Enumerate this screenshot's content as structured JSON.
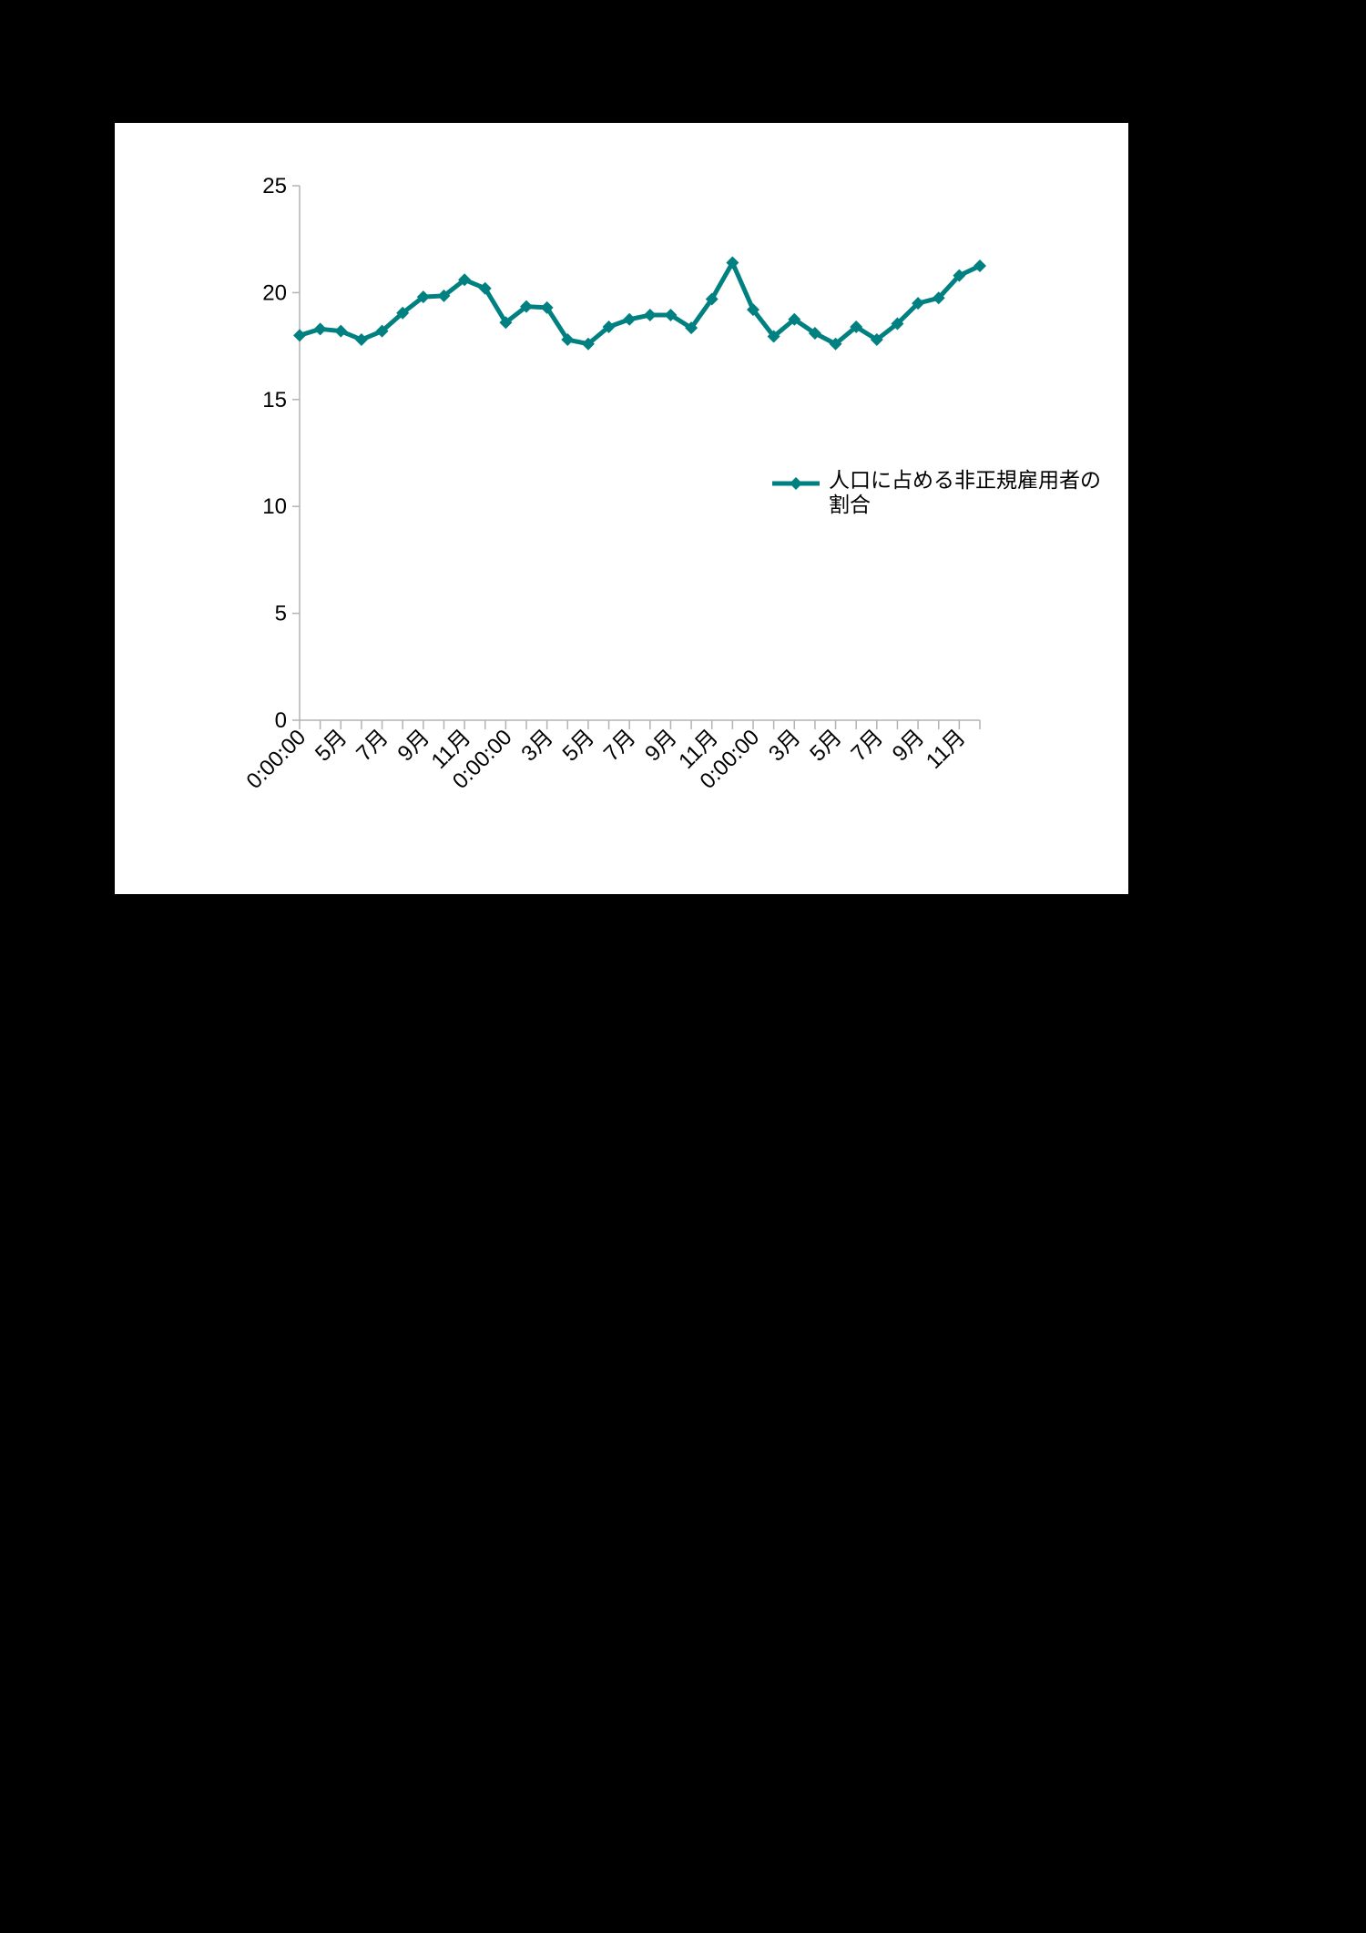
{
  "chart_data": {
    "type": "line",
    "categories": [
      "0:00:00",
      null,
      "5月",
      null,
      "7月",
      null,
      "9月",
      null,
      "11月",
      null,
      "0:00:00",
      null,
      "3月",
      null,
      "5月",
      null,
      "7月",
      null,
      "9月",
      null,
      "11月",
      null,
      "0:00:00",
      null,
      "3月",
      null,
      "5月",
      null,
      "7月",
      null,
      "9月",
      null,
      "11月",
      null
    ],
    "series": [
      {
        "name": "人口に占める非正規雇用者の割合",
        "color": "#008080",
        "values": [
          18.0,
          18.3,
          18.2,
          17.8,
          18.2,
          19.05,
          19.8,
          19.85,
          20.6,
          20.2,
          18.6,
          19.35,
          19.3,
          17.8,
          17.6,
          18.4,
          18.75,
          18.95,
          18.95,
          18.35,
          19.7,
          21.4,
          19.2,
          17.95,
          18.75,
          18.1,
          17.6,
          18.4,
          17.8,
          18.55,
          19.5,
          19.75,
          20.8,
          21.25
        ]
      }
    ],
    "ylim": [
      0,
      25
    ],
    "yticks": [
      0,
      5,
      10,
      15,
      20,
      25
    ],
    "legend": "right"
  }
}
